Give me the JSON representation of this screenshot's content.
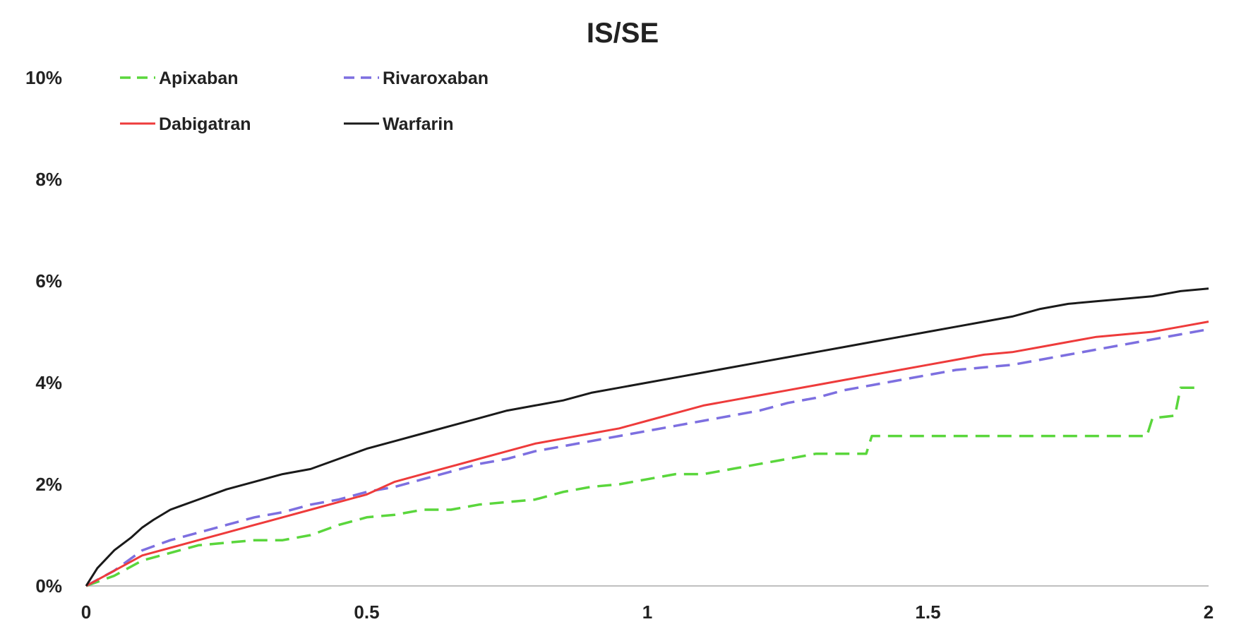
{
  "chart_data": {
    "type": "line",
    "title": "IS/SE",
    "xlabel": "",
    "ylabel": "",
    "xlim": [
      0,
      2
    ],
    "ylim": [
      0,
      10
    ],
    "x_ticks": [
      {
        "value": 0,
        "label": "0"
      },
      {
        "value": 0.5,
        "label": "0.5"
      },
      {
        "value": 1,
        "label": "1"
      },
      {
        "value": 1.5,
        "label": "1.5"
      },
      {
        "value": 2,
        "label": "2"
      }
    ],
    "y_ticks": [
      {
        "value": 0,
        "label": "0%"
      },
      {
        "value": 2,
        "label": "2%"
      },
      {
        "value": 4,
        "label": "4%"
      },
      {
        "value": 6,
        "label": "6%"
      },
      {
        "value": 8,
        "label": "8%"
      },
      {
        "value": 10,
        "label": "10%"
      }
    ],
    "grid": false,
    "legend_position": "top-left",
    "series": [
      {
        "name": "Apixaban",
        "color": "#5ad63c",
        "dash": "dashed",
        "points": [
          [
            0,
            0
          ],
          [
            0.05,
            0.2
          ],
          [
            0.1,
            0.5
          ],
          [
            0.15,
            0.65
          ],
          [
            0.2,
            0.8
          ],
          [
            0.25,
            0.85
          ],
          [
            0.3,
            0.9
          ],
          [
            0.35,
            0.9
          ],
          [
            0.4,
            1.0
          ],
          [
            0.45,
            1.2
          ],
          [
            0.5,
            1.35
          ],
          [
            0.55,
            1.4
          ],
          [
            0.6,
            1.5
          ],
          [
            0.65,
            1.5
          ],
          [
            0.7,
            1.6
          ],
          [
            0.75,
            1.65
          ],
          [
            0.8,
            1.7
          ],
          [
            0.85,
            1.85
          ],
          [
            0.9,
            1.95
          ],
          [
            0.95,
            2.0
          ],
          [
            1.0,
            2.1
          ],
          [
            1.05,
            2.2
          ],
          [
            1.1,
            2.2
          ],
          [
            1.15,
            2.3
          ],
          [
            1.2,
            2.4
          ],
          [
            1.25,
            2.5
          ],
          [
            1.3,
            2.6
          ],
          [
            1.35,
            2.6
          ],
          [
            1.39,
            2.6
          ],
          [
            1.4,
            2.95
          ],
          [
            1.5,
            2.95
          ],
          [
            1.6,
            2.95
          ],
          [
            1.7,
            2.95
          ],
          [
            1.8,
            2.95
          ],
          [
            1.89,
            2.95
          ],
          [
            1.9,
            3.3
          ],
          [
            1.94,
            3.35
          ],
          [
            1.95,
            3.9
          ],
          [
            1.98,
            3.9
          ]
        ]
      },
      {
        "name": "Rivaroxaban",
        "color": "#7d6fe0",
        "dash": "dashed",
        "points": [
          [
            0,
            0
          ],
          [
            0.05,
            0.3
          ],
          [
            0.1,
            0.7
          ],
          [
            0.15,
            0.9
          ],
          [
            0.2,
            1.05
          ],
          [
            0.25,
            1.2
          ],
          [
            0.3,
            1.35
          ],
          [
            0.35,
            1.45
          ],
          [
            0.4,
            1.6
          ],
          [
            0.45,
            1.7
          ],
          [
            0.5,
            1.85
          ],
          [
            0.55,
            1.95
          ],
          [
            0.6,
            2.1
          ],
          [
            0.65,
            2.25
          ],
          [
            0.7,
            2.4
          ],
          [
            0.75,
            2.5
          ],
          [
            0.8,
            2.65
          ],
          [
            0.85,
            2.75
          ],
          [
            0.9,
            2.85
          ],
          [
            0.95,
            2.95
          ],
          [
            1.0,
            3.05
          ],
          [
            1.05,
            3.15
          ],
          [
            1.1,
            3.25
          ],
          [
            1.15,
            3.35
          ],
          [
            1.2,
            3.45
          ],
          [
            1.25,
            3.6
          ],
          [
            1.3,
            3.7
          ],
          [
            1.35,
            3.85
          ],
          [
            1.4,
            3.95
          ],
          [
            1.45,
            4.05
          ],
          [
            1.5,
            4.15
          ],
          [
            1.55,
            4.25
          ],
          [
            1.6,
            4.3
          ],
          [
            1.65,
            4.35
          ],
          [
            1.7,
            4.45
          ],
          [
            1.75,
            4.55
          ],
          [
            1.8,
            4.65
          ],
          [
            1.85,
            4.75
          ],
          [
            1.9,
            4.85
          ],
          [
            1.95,
            4.95
          ],
          [
            2.0,
            5.05
          ]
        ]
      },
      {
        "name": "Dabigatran",
        "color": "#ee3b3b",
        "dash": "solid",
        "points": [
          [
            0,
            0
          ],
          [
            0.05,
            0.3
          ],
          [
            0.1,
            0.6
          ],
          [
            0.15,
            0.75
          ],
          [
            0.2,
            0.9
          ],
          [
            0.25,
            1.05
          ],
          [
            0.3,
            1.2
          ],
          [
            0.35,
            1.35
          ],
          [
            0.4,
            1.5
          ],
          [
            0.45,
            1.65
          ],
          [
            0.5,
            1.8
          ],
          [
            0.55,
            2.05
          ],
          [
            0.6,
            2.2
          ],
          [
            0.65,
            2.35
          ],
          [
            0.7,
            2.5
          ],
          [
            0.75,
            2.65
          ],
          [
            0.8,
            2.8
          ],
          [
            0.85,
            2.9
          ],
          [
            0.9,
            3.0
          ],
          [
            0.95,
            3.1
          ],
          [
            1.0,
            3.25
          ],
          [
            1.05,
            3.4
          ],
          [
            1.1,
            3.55
          ],
          [
            1.15,
            3.65
          ],
          [
            1.2,
            3.75
          ],
          [
            1.25,
            3.85
          ],
          [
            1.3,
            3.95
          ],
          [
            1.35,
            4.05
          ],
          [
            1.4,
            4.15
          ],
          [
            1.45,
            4.25
          ],
          [
            1.5,
            4.35
          ],
          [
            1.55,
            4.45
          ],
          [
            1.6,
            4.55
          ],
          [
            1.65,
            4.6
          ],
          [
            1.7,
            4.7
          ],
          [
            1.75,
            4.8
          ],
          [
            1.8,
            4.9
          ],
          [
            1.85,
            4.95
          ],
          [
            1.9,
            5.0
          ],
          [
            1.95,
            5.1
          ],
          [
            2.0,
            5.2
          ]
        ]
      },
      {
        "name": "Warfarin",
        "color": "#1a1a1a",
        "dash": "solid",
        "points": [
          [
            0,
            0
          ],
          [
            0.02,
            0.35
          ],
          [
            0.05,
            0.7
          ],
          [
            0.08,
            0.95
          ],
          [
            0.1,
            1.15
          ],
          [
            0.12,
            1.3
          ],
          [
            0.15,
            1.5
          ],
          [
            0.2,
            1.7
          ],
          [
            0.25,
            1.9
          ],
          [
            0.3,
            2.05
          ],
          [
            0.35,
            2.2
          ],
          [
            0.4,
            2.3
          ],
          [
            0.45,
            2.5
          ],
          [
            0.5,
            2.7
          ],
          [
            0.55,
            2.85
          ],
          [
            0.6,
            3.0
          ],
          [
            0.65,
            3.15
          ],
          [
            0.7,
            3.3
          ],
          [
            0.75,
            3.45
          ],
          [
            0.8,
            3.55
          ],
          [
            0.85,
            3.65
          ],
          [
            0.9,
            3.8
          ],
          [
            0.95,
            3.9
          ],
          [
            1.0,
            4.0
          ],
          [
            1.05,
            4.1
          ],
          [
            1.1,
            4.2
          ],
          [
            1.15,
            4.3
          ],
          [
            1.2,
            4.4
          ],
          [
            1.25,
            4.5
          ],
          [
            1.3,
            4.6
          ],
          [
            1.35,
            4.7
          ],
          [
            1.4,
            4.8
          ],
          [
            1.45,
            4.9
          ],
          [
            1.5,
            5.0
          ],
          [
            1.55,
            5.1
          ],
          [
            1.6,
            5.2
          ],
          [
            1.65,
            5.3
          ],
          [
            1.7,
            5.45
          ],
          [
            1.75,
            5.55
          ],
          [
            1.8,
            5.6
          ],
          [
            1.85,
            5.65
          ],
          [
            1.9,
            5.7
          ],
          [
            1.95,
            5.8
          ],
          [
            2.0,
            5.85
          ]
        ]
      }
    ]
  }
}
